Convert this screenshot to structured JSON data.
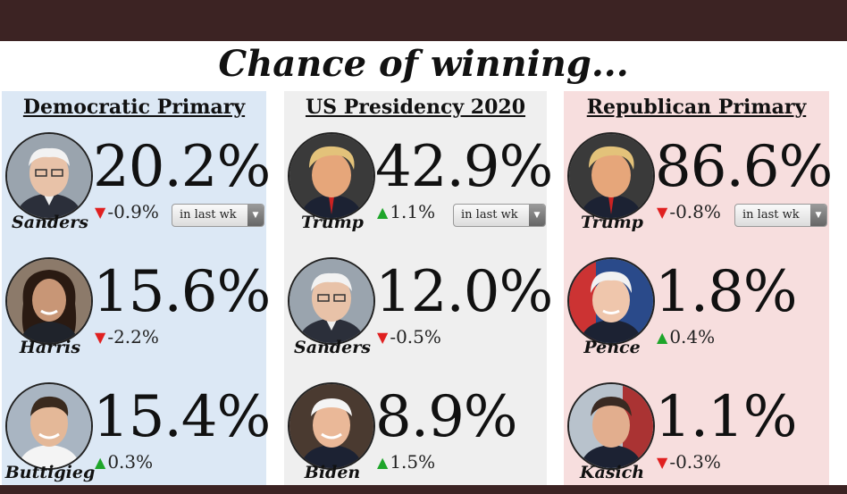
{
  "title": "Chance of winning...",
  "panels": {
    "dem": {
      "title": "Democratic Primary",
      "candidates": [
        {
          "name": "Sanders",
          "pct": "20.2%",
          "change": "-0.9%",
          "direction": "down",
          "period": "in last wk"
        },
        {
          "name": "Harris",
          "pct": "15.6%",
          "change": "-2.2%",
          "direction": "down"
        },
        {
          "name": "Buttigieg",
          "pct": "15.4%",
          "change": "0.3%",
          "direction": "up"
        }
      ]
    },
    "us": {
      "title": "US Presidency 2020",
      "candidates": [
        {
          "name": "Trump",
          "pct": "42.9%",
          "change": "1.1%",
          "direction": "up",
          "period": "in last wk"
        },
        {
          "name": "Sanders",
          "pct": "12.0%",
          "change": "-0.5%",
          "direction": "down"
        },
        {
          "name": "Biden",
          "pct": "8.9%",
          "change": "1.5%",
          "direction": "up"
        }
      ]
    },
    "rep": {
      "title": "Republican Primary",
      "candidates": [
        {
          "name": "Trump",
          "pct": "86.6%",
          "change": "-0.8%",
          "direction": "down",
          "period": "in last wk"
        },
        {
          "name": "Pence",
          "pct": "1.8%",
          "change": "0.4%",
          "direction": "up"
        },
        {
          "name": "Kasich",
          "pct": "1.1%",
          "change": "-0.3%",
          "direction": "down"
        }
      ]
    }
  },
  "colors": {
    "dem_panel": "#dce8f5",
    "us_panel": "#efefef",
    "rep_panel": "#f7dede",
    "down_arrow": "#e02020",
    "up_arrow": "#1ea52a",
    "frame": "#3c2323"
  },
  "icons": {
    "down": "triangle-down-icon",
    "up": "triangle-up-icon",
    "dropdown": "chevron-down-icon"
  }
}
